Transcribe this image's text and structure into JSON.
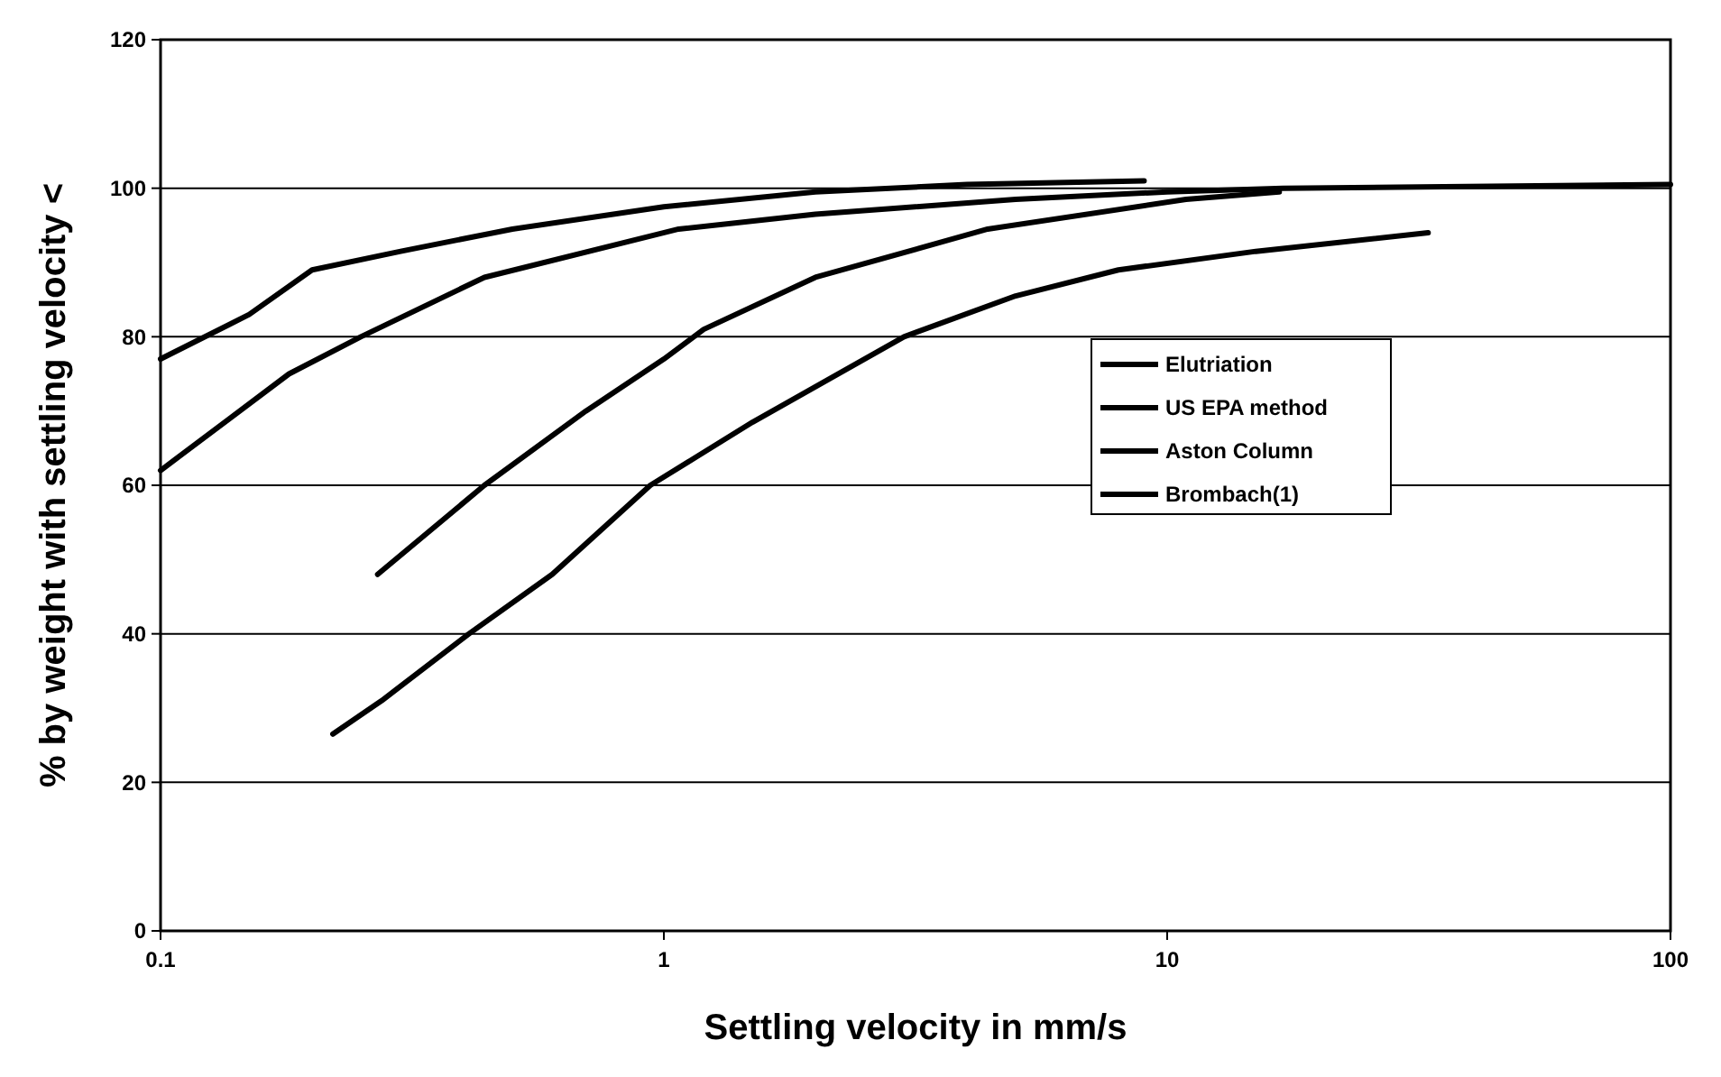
{
  "chart_data": {
    "type": "line",
    "xlabel": "Settling velocity in mm/s",
    "ylabel": "% by weight with settling velocity <",
    "log": "x",
    "xlim": [
      0.1,
      100
    ],
    "xticks": [
      0.1,
      1,
      10,
      100
    ],
    "ylim": [
      0,
      120
    ],
    "yticks": [
      0,
      20,
      40,
      60,
      80,
      100,
      120
    ],
    "grid": "y",
    "legend": "right",
    "marker": "none",
    "line_style": "solid",
    "series": [
      {
        "name": "Elutriation",
        "color": "#000000",
        "x": [
          0.1,
          0.15,
          0.2,
          0.3,
          0.5,
          1,
          2,
          4,
          9
        ],
        "values": [
          77,
          83,
          89,
          91.5,
          94.5,
          97.5,
          99.5,
          100.5,
          101
        ]
      },
      {
        "name": "US EPA method",
        "color": "#000000",
        "x": [
          0.1,
          0.18,
          0.25,
          0.44,
          1.07,
          2,
          5,
          10,
          17,
          100
        ],
        "values": [
          62,
          75,
          80,
          88,
          94.5,
          96.5,
          98.5,
          99.5,
          100,
          100.5
        ]
      },
      {
        "name": "Aston Column",
        "color": "#000000",
        "x": [
          0.27,
          0.44,
          0.7,
          1,
          1.2,
          2,
          4.4,
          10.9,
          16.7
        ],
        "values": [
          48,
          60,
          70,
          77,
          81,
          88,
          94.5,
          98.5,
          99.5
        ]
      },
      {
        "name": "Brombach(1)",
        "color": "#000000",
        "x": [
          0.22,
          0.275,
          0.41,
          0.6,
          0.94,
          1.5,
          3,
          5,
          8,
          15,
          33
        ],
        "values": [
          26.5,
          31,
          40,
          48,
          60,
          68.5,
          80,
          85.5,
          89,
          91.5,
          94
        ]
      }
    ]
  }
}
